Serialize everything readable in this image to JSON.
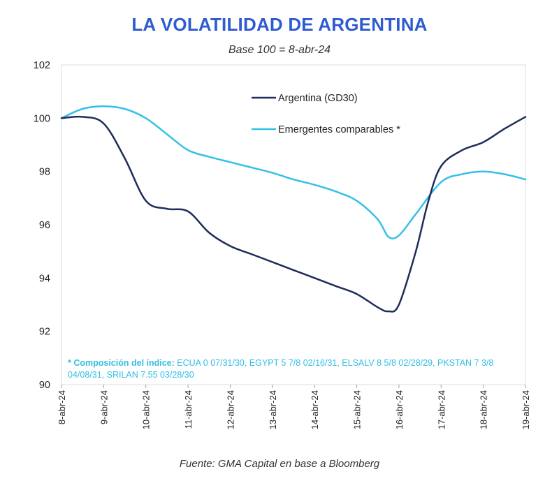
{
  "chart_data": {
    "type": "line",
    "title": "LA VOLATILIDAD DE ARGENTINA",
    "subtitle": "Base 100 = 8-abr-24",
    "source": "Fuente: GMA Capital en base a Bloomberg",
    "note_label": "* Composición del índice:",
    "note_text": " ECUA 0 07/31/30, EGYPT 5 7/8 02/16/31, ELSALV 8 5/8 02/28/29, PKSTAN 7 3/8 04/08/31, SRILAN 7.55 03/28/30",
    "xlabel": "",
    "ylabel": "",
    "categories": [
      "8-abr-24",
      "9-abr-24",
      "10-abr-24",
      "11-abr-24",
      "12-abr-24",
      "13-abr-24",
      "14-abr-24",
      "15-abr-24",
      "16-abr-24",
      "17-abr-24",
      "18-abr-24",
      "19-abr-24"
    ],
    "ylim": [
      90,
      102
    ],
    "yticks": [
      "90",
      "92",
      "94",
      "96",
      "98",
      "100",
      "102"
    ],
    "legend_position": "top-center",
    "series": [
      {
        "name": "Argentina (GD30)",
        "color": "#1f2d5a",
        "x": [
          0,
          0.5,
          1,
          1.5,
          2,
          2.5,
          3,
          3.5,
          4,
          4.5,
          5,
          5.5,
          6,
          6.5,
          7,
          7.5,
          7.75,
          8,
          8.4,
          8.7,
          9,
          9.5,
          10,
          10.5,
          11
        ],
        "values": [
          100.0,
          100.05,
          99.8,
          98.5,
          96.9,
          96.6,
          96.5,
          95.7,
          95.2,
          94.9,
          94.6,
          94.3,
          94.0,
          93.7,
          93.4,
          92.9,
          92.75,
          93.0,
          95.0,
          96.9,
          98.2,
          98.8,
          99.1,
          99.6,
          100.05
        ]
      },
      {
        "name": "Emergentes comparables *",
        "color": "#35c0e8",
        "x": [
          0,
          0.5,
          1,
          1.5,
          2,
          2.5,
          3,
          3.5,
          4,
          4.5,
          5,
          5.5,
          6,
          6.5,
          7,
          7.5,
          7.75,
          8,
          8.4,
          9,
          9.5,
          10,
          10.5,
          11
        ],
        "values": [
          100.0,
          100.35,
          100.45,
          100.35,
          100.0,
          99.4,
          98.8,
          98.55,
          98.35,
          98.15,
          97.95,
          97.7,
          97.5,
          97.25,
          96.9,
          96.2,
          95.55,
          95.6,
          96.4,
          97.6,
          97.9,
          98.0,
          97.9,
          97.7
        ]
      }
    ]
  }
}
